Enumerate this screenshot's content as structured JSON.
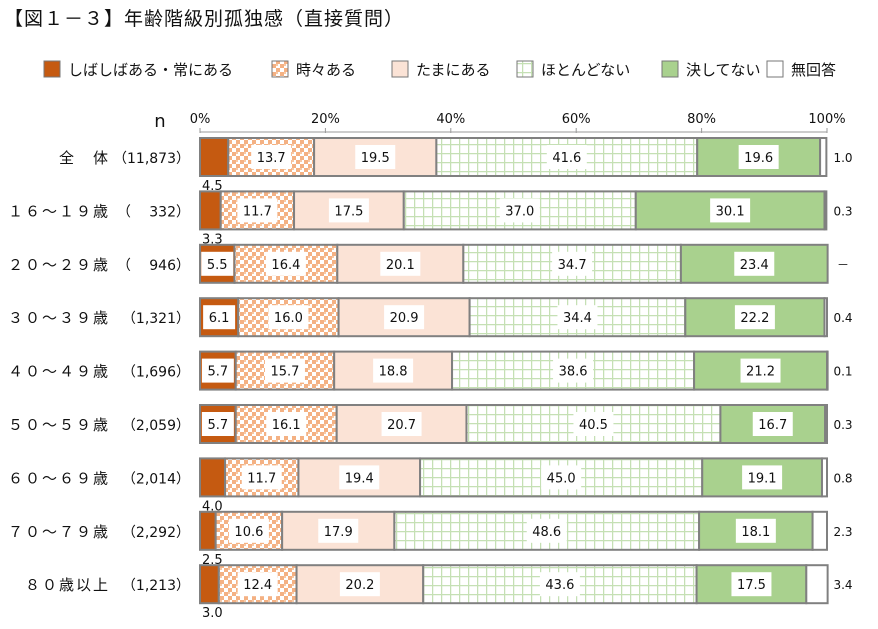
{
  "chart_data": {
    "type": "bar",
    "orientation": "horizontal",
    "stacked": true,
    "title": "【図１－３】年齢階級別孤独感（直接質問）",
    "n_label": "n",
    "xlim": [
      0,
      100
    ],
    "xticks": [
      "0%",
      "20%",
      "40%",
      "60%",
      "80%",
      "100%"
    ],
    "legend_position": "top",
    "categories": [
      "全　体",
      "１６～１９歳",
      "２０～２９歳",
      "３０～３９歳",
      "４０～４９歳",
      "５０～５９歳",
      "６０～６９歳",
      "７０～７９歳",
      "８０歳以上"
    ],
    "n_values": [
      "（11,873）",
      "（　 332）",
      "（　 946）",
      "（1,321）",
      "（1,696）",
      "（2,059）",
      "（2,014）",
      "（2,292）",
      "（1,213）"
    ],
    "series": [
      {
        "name": "しばしばある・常にある",
        "color": "#C55A11",
        "pattern": "solid",
        "values": [
          4.5,
          3.3,
          5.5,
          6.1,
          5.7,
          5.7,
          4.0,
          2.5,
          3.0
        ]
      },
      {
        "name": "時々ある",
        "color": "#F4B183",
        "pattern": "checker",
        "values": [
          13.7,
          11.7,
          16.4,
          16.0,
          15.7,
          16.1,
          11.7,
          10.6,
          12.4
        ]
      },
      {
        "name": "たまにある",
        "color": "#FBE3D6",
        "pattern": "solid",
        "values": [
          19.5,
          17.5,
          20.1,
          20.9,
          18.8,
          20.7,
          19.4,
          17.9,
          20.2
        ]
      },
      {
        "name": "ほとんどない",
        "color": "#C5E0B4",
        "pattern": "grid",
        "values": [
          41.6,
          37.0,
          34.7,
          34.4,
          38.6,
          40.5,
          45.0,
          48.6,
          43.6
        ]
      },
      {
        "name": "決してない",
        "color": "#A9D18E",
        "pattern": "solid",
        "values": [
          19.6,
          30.1,
          23.4,
          22.2,
          21.2,
          16.7,
          19.1,
          18.1,
          17.5
        ]
      },
      {
        "name": "無回答",
        "color": "#FFFFFF",
        "pattern": "solid",
        "values": [
          1.0,
          0.3,
          null,
          0.4,
          0.1,
          0.3,
          0.8,
          2.3,
          3.4
        ]
      }
    ],
    "value_labels": {
      "しばしばある・常にある": [
        "4.5",
        "3.3",
        "5.5",
        "6.1",
        "5.7",
        "5.7",
        "4.0",
        "2.5",
        "3.0"
      ],
      "無回答": [
        "1.0",
        "0.3",
        "－",
        "0.4",
        "0.1",
        "0.3",
        "0.8",
        "2.3",
        "3.4"
      ]
    }
  }
}
